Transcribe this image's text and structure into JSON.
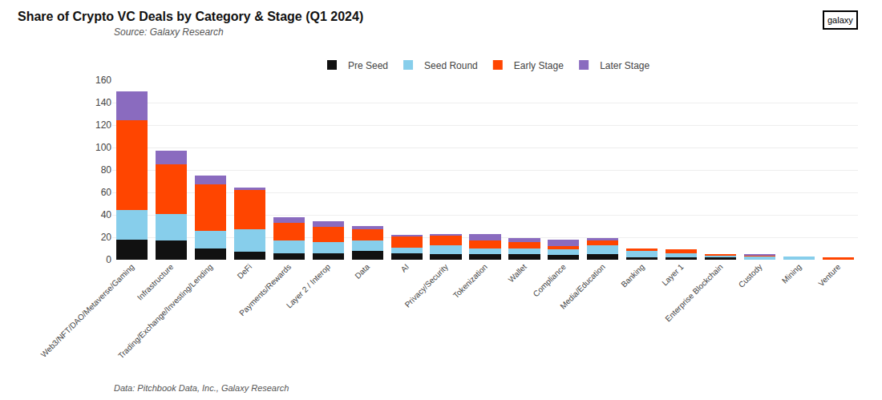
{
  "chart_data": {
    "type": "bar",
    "title": "Share of Crypto VC Deals by Category & Stage (Q1 2024)",
    "subtitle": "Source: Galaxy Research",
    "footnote": "Data: Pitchbook Data, Inc., Galaxy Research",
    "annotations": [
      "galaxy"
    ],
    "categories": [
      "Web3/NFT/DAO/Metaverse/Gaming",
      "Infrastructure",
      "Trading/Exchange/Investing/Lending",
      "DeFi",
      "Payments/Rewards",
      "Layer 2 / Interop",
      "Data",
      "AI",
      "Privacy/Security",
      "Tokenization",
      "Wallet",
      "Compliance",
      "Media/Education",
      "Banking",
      "Layer 1",
      "Enterprise Blockchain",
      "Custody",
      "Mining",
      "Venture"
    ],
    "series": [
      {
        "name": "Pre Seed",
        "color": "#111111",
        "values": [
          18,
          17,
          10,
          7,
          6,
          6,
          8,
          6,
          5,
          5,
          5,
          4,
          5,
          2,
          2,
          2,
          0,
          0,
          0
        ]
      },
      {
        "name": "Seed Round",
        "color": "#87ceeb",
        "values": [
          26,
          24,
          16,
          20,
          11,
          10,
          9,
          5,
          8,
          5,
          5,
          5,
          8,
          6,
          4,
          2,
          3,
          3,
          0
        ]
      },
      {
        "name": "Early Stage",
        "color": "#ff4500",
        "values": [
          80,
          44,
          41,
          35,
          16,
          13,
          10,
          10,
          9,
          7,
          6,
          3,
          4,
          2,
          3,
          1,
          1,
          0,
          2
        ]
      },
      {
        "name": "Later Stage",
        "color": "#8a6bbf",
        "values": [
          26,
          12,
          8,
          2,
          5,
          5,
          3,
          1,
          1,
          6,
          3,
          6,
          2,
          0,
          0,
          0,
          1,
          0,
          0
        ]
      }
    ],
    "stacked": true,
    "ylim": [
      0,
      160
    ],
    "yticks": [
      0,
      20,
      40,
      60,
      80,
      100,
      120,
      140,
      160
    ],
    "grid": true,
    "legend": "top"
  }
}
